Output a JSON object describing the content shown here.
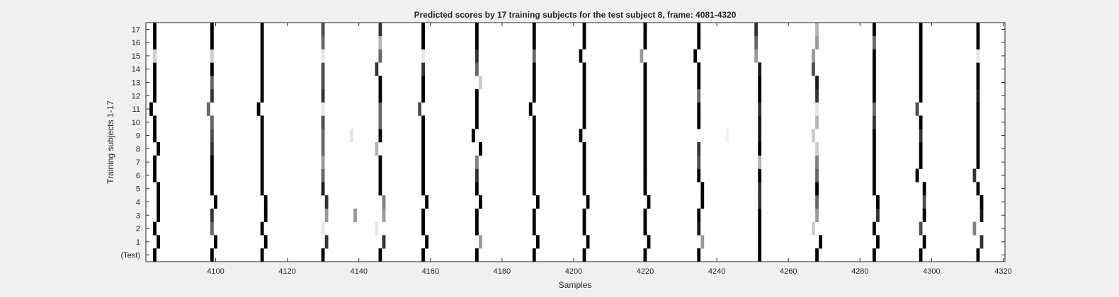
{
  "chart_data": {
    "type": "heatmap",
    "title": "Predicted scores by 17 training subjects for the test subject 8, frame: 4081-4320",
    "xlabel": "Samples",
    "ylabel": "Training subjects 1-17",
    "xlim": [
      4081,
      4320
    ],
    "x_ticks": [
      4100,
      4120,
      4140,
      4160,
      4180,
      4200,
      4220,
      4240,
      4260,
      4280,
      4300,
      4320
    ],
    "y_tick_labels": [
      "(Test)",
      "1",
      "2",
      "3",
      "4",
      "5",
      "6",
      "7",
      "8",
      "9",
      "10",
      "11",
      "12",
      "13",
      "14",
      "15",
      "16",
      "17"
    ],
    "colormap": "gray (white = 0, black = 1)",
    "grid": false,
    "rows": [
      {
        "label": "(Test)",
        "peaks": [
          [
            4083,
            1
          ],
          [
            4099,
            1
          ],
          [
            4113,
            1
          ],
          [
            4130,
            1
          ],
          [
            4146,
            1
          ],
          [
            4158,
            1
          ],
          [
            4173,
            1
          ],
          [
            4189,
            1
          ],
          [
            4203,
            1
          ],
          [
            4220,
            1
          ],
          [
            4235,
            1
          ],
          [
            4252,
            1
          ],
          [
            4268,
            1
          ],
          [
            4284,
            1
          ],
          [
            4297,
            1
          ],
          [
            4313,
            1
          ]
        ]
      },
      {
        "label": "1",
        "peaks": [
          [
            4084,
            1
          ],
          [
            4100,
            1
          ],
          [
            4114,
            1
          ],
          [
            4131,
            0.8
          ],
          [
            4147,
            0.8
          ],
          [
            4159,
            1
          ],
          [
            4174,
            0.4
          ],
          [
            4190,
            1
          ],
          [
            4204,
            1
          ],
          [
            4221,
            1
          ],
          [
            4236,
            0.4
          ],
          [
            4252,
            1
          ],
          [
            4269,
            1
          ],
          [
            4285,
            1
          ],
          [
            4298,
            1
          ],
          [
            4314,
            0.8
          ]
        ]
      },
      {
        "label": "2",
        "peaks": [
          [
            4083,
            1
          ],
          [
            4099,
            0.6
          ],
          [
            4113,
            1
          ],
          [
            4130,
            0.1
          ],
          [
            4145,
            0.1
          ],
          [
            4158,
            1
          ],
          [
            4173,
            1
          ],
          [
            4189,
            1
          ],
          [
            4203,
            1
          ],
          [
            4220,
            1
          ],
          [
            4235,
            0.9
          ],
          [
            4252,
            1
          ],
          [
            4267,
            0.2
          ],
          [
            4284,
            1
          ],
          [
            4297,
            0.7
          ],
          [
            4312,
            0.5
          ]
        ]
      },
      {
        "label": "3",
        "peaks": [
          [
            4084,
            1
          ],
          [
            4099,
            0.8
          ],
          [
            4114,
            1
          ],
          [
            4131,
            0.4
          ],
          [
            4139,
            0.4
          ],
          [
            4147,
            0.4
          ],
          [
            4158,
            1
          ],
          [
            4173,
            1
          ],
          [
            4189,
            1
          ],
          [
            4203,
            1
          ],
          [
            4220,
            1
          ],
          [
            4235,
            1
          ],
          [
            4252,
            1
          ],
          [
            4268,
            0.4
          ],
          [
            4285,
            0.8
          ],
          [
            4298,
            1
          ],
          [
            4314,
            0.9
          ]
        ]
      },
      {
        "label": "4",
        "peaks": [
          [
            4084,
            1
          ],
          [
            4100,
            1
          ],
          [
            4114,
            1
          ],
          [
            4131,
            0.8
          ],
          [
            4147,
            0.5
          ],
          [
            4159,
            1
          ],
          [
            4174,
            1
          ],
          [
            4190,
            1
          ],
          [
            4204,
            1
          ],
          [
            4221,
            1
          ],
          [
            4236,
            1
          ],
          [
            4252,
            0.8
          ],
          [
            4268,
            0.6
          ],
          [
            4285,
            1
          ],
          [
            4298,
            0.7
          ],
          [
            4314,
            1
          ]
        ]
      },
      {
        "label": "5",
        "peaks": [
          [
            4084,
            1
          ],
          [
            4099,
            1
          ],
          [
            4113,
            1
          ],
          [
            4130,
            0.9
          ],
          [
            4146,
            1
          ],
          [
            4158,
            1
          ],
          [
            4173,
            1
          ],
          [
            4189,
            1
          ],
          [
            4203,
            1
          ],
          [
            4220,
            1
          ],
          [
            4236,
            1
          ],
          [
            4252,
            0.8
          ],
          [
            4268,
            1
          ],
          [
            4284,
            1
          ],
          [
            4298,
            1
          ],
          [
            4313,
            1
          ]
        ]
      },
      {
        "label": "6",
        "peaks": [
          [
            4083,
            1
          ],
          [
            4099,
            1
          ],
          [
            4113,
            1
          ],
          [
            4130,
            0.6
          ],
          [
            4146,
            1
          ],
          [
            4158,
            1
          ],
          [
            4173,
            0.8
          ],
          [
            4189,
            1
          ],
          [
            4203,
            1
          ],
          [
            4220,
            1
          ],
          [
            4235,
            1
          ],
          [
            4252,
            1
          ],
          [
            4268,
            0.6
          ],
          [
            4284,
            1
          ],
          [
            4296,
            1
          ],
          [
            4312,
            0.8
          ]
        ]
      },
      {
        "label": "7",
        "peaks": [
          [
            4083,
            1
          ],
          [
            4099,
            1
          ],
          [
            4113,
            1
          ],
          [
            4130,
            0.4
          ],
          [
            4146,
            1
          ],
          [
            4158,
            1
          ],
          [
            4173,
            0.5
          ],
          [
            4189,
            1
          ],
          [
            4203,
            1
          ],
          [
            4220,
            1
          ],
          [
            4235,
            0.7
          ],
          [
            4252,
            0.3
          ],
          [
            4268,
            0.5
          ],
          [
            4284,
            1
          ],
          [
            4297,
            1
          ],
          [
            4313,
            1
          ]
        ]
      },
      {
        "label": "8",
        "peaks": [
          [
            4084,
            1
          ],
          [
            4099,
            0.8
          ],
          [
            4113,
            1
          ],
          [
            4130,
            0.6
          ],
          [
            4145,
            0.3
          ],
          [
            4158,
            1
          ],
          [
            4174,
            1
          ],
          [
            4189,
            1
          ],
          [
            4203,
            1
          ],
          [
            4220,
            1
          ],
          [
            4235,
            0.8
          ],
          [
            4252,
            1
          ],
          [
            4268,
            0.2
          ],
          [
            4284,
            1
          ],
          [
            4297,
            1
          ],
          [
            4313,
            1
          ]
        ]
      },
      {
        "label": "9",
        "peaks": [
          [
            4083,
            1
          ],
          [
            4099,
            0.7
          ],
          [
            4113,
            1
          ],
          [
            4130,
            0.6
          ],
          [
            4138,
            0.1
          ],
          [
            4146,
            1
          ],
          [
            4158,
            1
          ],
          [
            4172,
            1
          ],
          [
            4189,
            1
          ],
          [
            4202,
            1
          ],
          [
            4220,
            1
          ],
          [
            4243,
            0.05
          ],
          [
            4252,
            0.9
          ],
          [
            4267,
            0.2
          ],
          [
            4284,
            1
          ],
          [
            4297,
            0.8
          ],
          [
            4313,
            1
          ]
        ]
      },
      {
        "label": "10",
        "peaks": [
          [
            4083,
            1
          ],
          [
            4099,
            0.6
          ],
          [
            4113,
            1
          ],
          [
            4130,
            0.7
          ],
          [
            4146,
            0.6
          ],
          [
            4158,
            1
          ],
          [
            4173,
            1
          ],
          [
            4189,
            1
          ],
          [
            4203,
            1
          ],
          [
            4220,
            1
          ],
          [
            4235,
            1
          ],
          [
            4252,
            0.9
          ],
          [
            4268,
            0.3
          ],
          [
            4284,
            0.8
          ],
          [
            4297,
            1
          ],
          [
            4313,
            1
          ]
        ]
      },
      {
        "label": "11",
        "peaks": [
          [
            4082,
            1
          ],
          [
            4098,
            0.6
          ],
          [
            4112,
            1
          ],
          [
            4130,
            0.1
          ],
          [
            4146,
            0.6
          ],
          [
            4157,
            0.7
          ],
          [
            4173,
            1
          ],
          [
            4188,
            1
          ],
          [
            4203,
            1
          ],
          [
            4220,
            1
          ],
          [
            4235,
            1
          ],
          [
            4252,
            0.8
          ],
          [
            4268,
            0.1
          ],
          [
            4284,
            0.6
          ],
          [
            4296,
            0.7
          ],
          [
            4313,
            1
          ]
        ]
      },
      {
        "label": "12",
        "peaks": [
          [
            4083,
            1
          ],
          [
            4099,
            0.8
          ],
          [
            4113,
            1
          ],
          [
            4130,
            0.8
          ],
          [
            4146,
            1
          ],
          [
            4158,
            1
          ],
          [
            4173,
            1
          ],
          [
            4189,
            1
          ],
          [
            4203,
            1
          ],
          [
            4220,
            1
          ],
          [
            4235,
            0.6
          ],
          [
            4252,
            1
          ],
          [
            4268,
            0.8
          ],
          [
            4284,
            1
          ],
          [
            4297,
            1
          ],
          [
            4313,
            0.9
          ]
        ]
      },
      {
        "label": "13",
        "peaks": [
          [
            4083,
            1
          ],
          [
            4099,
            0.6
          ],
          [
            4113,
            1
          ],
          [
            4130,
            0.7
          ],
          [
            4146,
            1
          ],
          [
            4158,
            1
          ],
          [
            4174,
            0.2
          ],
          [
            4189,
            1
          ],
          [
            4203,
            1
          ],
          [
            4220,
            1
          ],
          [
            4235,
            1
          ],
          [
            4252,
            1
          ],
          [
            4268,
            0.9
          ],
          [
            4284,
            1
          ],
          [
            4297,
            1
          ],
          [
            4313,
            1
          ]
        ]
      },
      {
        "label": "14",
        "peaks": [
          [
            4083,
            1
          ],
          [
            4099,
            1
          ],
          [
            4113,
            1
          ],
          [
            4130,
            0.7
          ],
          [
            4145,
            0.8
          ],
          [
            4158,
            0.8
          ],
          [
            4173,
            0.6
          ],
          [
            4189,
            1
          ],
          [
            4203,
            1
          ],
          [
            4220,
            1
          ],
          [
            4235,
            1
          ],
          [
            4252,
            0.9
          ],
          [
            4267,
            0.7
          ],
          [
            4284,
            1
          ],
          [
            4297,
            1
          ],
          [
            4313,
            1
          ]
        ]
      },
      {
        "label": "15",
        "peaks": [
          [
            4083,
            0.2
          ],
          [
            4099,
            0.2
          ],
          [
            4113,
            1
          ],
          [
            4130,
            0.1
          ],
          [
            4146,
            0.6
          ],
          [
            4158,
            0.1
          ],
          [
            4173,
            0.8
          ],
          [
            4189,
            0.6
          ],
          [
            4202,
            1
          ],
          [
            4219,
            0.4
          ],
          [
            4234,
            1
          ],
          [
            4251,
            0.4
          ],
          [
            4267,
            0.4
          ],
          [
            4284,
            1
          ],
          [
            4297,
            1
          ],
          [
            4313,
            0.1
          ]
        ]
      },
      {
        "label": "16",
        "peaks": [
          [
            4083,
            1
          ],
          [
            4099,
            1
          ],
          [
            4113,
            1
          ],
          [
            4130,
            0.6
          ],
          [
            4146,
            0.3
          ],
          [
            4158,
            1
          ],
          [
            4173,
            1
          ],
          [
            4189,
            1
          ],
          [
            4203,
            1
          ],
          [
            4220,
            1
          ],
          [
            4235,
            1
          ],
          [
            4251,
            0.6
          ],
          [
            4268,
            0.4
          ],
          [
            4284,
            0.6
          ],
          [
            4297,
            1
          ],
          [
            4313,
            1
          ]
        ]
      },
      {
        "label": "17",
        "peaks": [
          [
            4083,
            1
          ],
          [
            4099,
            1
          ],
          [
            4113,
            1
          ],
          [
            4130,
            0.7
          ],
          [
            4146,
            0.8
          ],
          [
            4158,
            1
          ],
          [
            4173,
            1
          ],
          [
            4189,
            1
          ],
          [
            4203,
            1
          ],
          [
            4220,
            1
          ],
          [
            4235,
            1
          ],
          [
            4251,
            0.8
          ],
          [
            4268,
            0.3
          ],
          [
            4284,
            1
          ],
          [
            4297,
            1
          ],
          [
            4313,
            1
          ]
        ]
      }
    ]
  }
}
